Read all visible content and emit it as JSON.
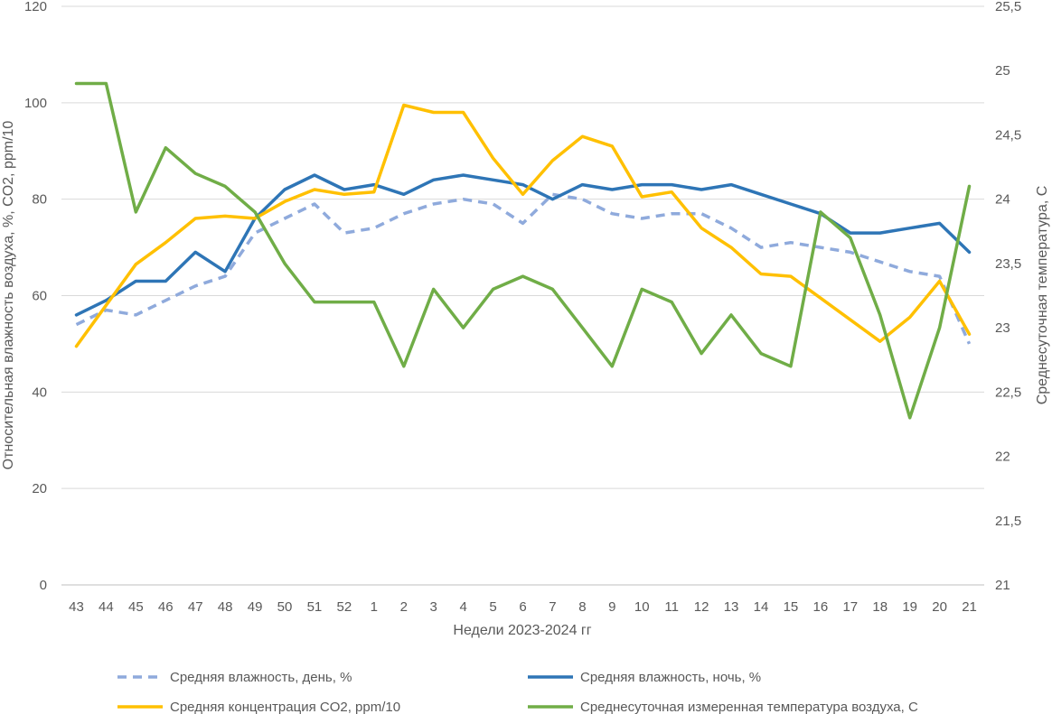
{
  "chart_data": {
    "type": "line",
    "xlabel": "Недели 2023-2024 гг",
    "ylabel_left": "Относительная влажность воздуха, %, CO2, ppm/10",
    "ylabel_right": "Среднесуточная температура, С",
    "ylim_left": [
      0,
      120
    ],
    "ylim_right": [
      21,
      25.5
    ],
    "yticks_left": [
      "0",
      "20",
      "40",
      "60",
      "80",
      "100",
      "120"
    ],
    "yticks_right": [
      "21",
      "21,5",
      "22",
      "22,5",
      "23",
      "23,5",
      "24",
      "24,5",
      "25",
      "25,5"
    ],
    "grid": "horizontal",
    "legend_position": "bottom",
    "categories": [
      "43",
      "44",
      "45",
      "46",
      "47",
      "48",
      "49",
      "50",
      "51",
      "52",
      "1",
      "2",
      "3",
      "4",
      "5",
      "6",
      "7",
      "8",
      "9",
      "10",
      "11",
      "12",
      "13",
      "14",
      "15",
      "16",
      "17",
      "18",
      "19",
      "20",
      "21"
    ],
    "series": [
      {
        "name": "Средняя влажность, день, %",
        "axis": "left",
        "color": "#8FAADC",
        "dash": true,
        "values": [
          54,
          57,
          56,
          59,
          62,
          64,
          73,
          76,
          79,
          73,
          74,
          77,
          79,
          80,
          79,
          75,
          81,
          80,
          77,
          76,
          77,
          77,
          74,
          70,
          71,
          70,
          69,
          67,
          65,
          64,
          50
        ]
      },
      {
        "name": "Средняя влажность, ночь, %",
        "axis": "left",
        "color": "#2E75B6",
        "dash": false,
        "values": [
          56,
          59,
          63,
          63,
          69,
          65,
          76,
          82,
          85,
          82,
          83,
          81,
          84,
          85,
          84,
          83,
          80,
          83,
          82,
          83,
          83,
          82,
          83,
          81,
          79,
          77,
          73,
          73,
          74,
          75,
          69
        ]
      },
      {
        "name": "Средняя концентрация CO2, ppm/10",
        "axis": "left",
        "color": "#FFC000",
        "dash": false,
        "values": [
          49.5,
          58,
          66.5,
          71,
          76,
          76.5,
          76,
          79.5,
          82,
          81,
          81.5,
          99.5,
          98,
          98,
          88.5,
          81,
          88,
          93,
          91,
          80.5,
          81.5,
          74,
          70,
          64.5,
          64,
          59.5,
          55,
          50.5,
          55.5,
          63,
          52
        ]
      },
      {
        "name": "Среднесуточная измеренная температура воздуха, С",
        "axis": "right",
        "color": "#70AD47",
        "dash": false,
        "values": [
          24.9,
          24.9,
          23.9,
          24.4,
          24.2,
          24.1,
          23.9,
          23.5,
          23.2,
          23.2,
          23.2,
          22.7,
          23.3,
          23.0,
          23.3,
          23.4,
          23.3,
          23.0,
          22.7,
          23.3,
          23.2,
          22.8,
          23.1,
          22.8,
          22.7,
          23.9,
          23.7,
          23.1,
          22.3,
          23.0,
          24.1
        ]
      }
    ]
  }
}
